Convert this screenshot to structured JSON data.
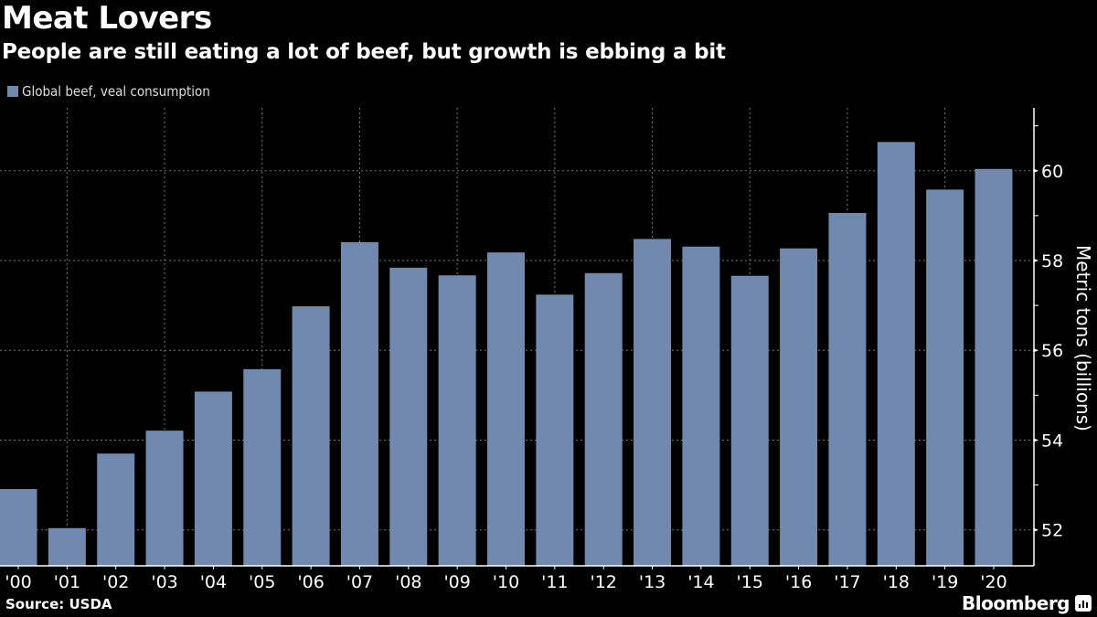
{
  "header": {
    "title": "Meat Lovers",
    "subtitle": "People are still eating a lot of beef, but growth is ebbing a bit"
  },
  "footer": {
    "source": "Source: USDA",
    "brand": "Bloomberg",
    "brand_icon": "bloomberg-chart-icon"
  },
  "colors": {
    "background": "#000000",
    "bar": "#7189ae",
    "text": "#ffffff",
    "grid": "#666666"
  },
  "chart_data": {
    "type": "bar",
    "title": "Meat Lovers",
    "subtitle": "People are still eating a lot of beef, but growth is ebbing a bit",
    "xlabel": "",
    "ylabel": "Metric tons (billions)",
    "legend": {
      "position": "top-left",
      "entries": [
        "Global beef, veal consumption"
      ]
    },
    "categories": [
      "'00",
      "'01",
      "'02",
      "'03",
      "'04",
      "'05",
      "'06",
      "'07",
      "'08",
      "'09",
      "'10",
      "'11",
      "'12",
      "'13",
      "'14",
      "'15",
      "'16",
      "'17",
      "'18",
      "'19",
      "'20"
    ],
    "series": [
      {
        "name": "Global beef, veal consumption",
        "values": [
          52.91,
          52.04,
          53.7,
          54.21,
          55.08,
          55.58,
          56.98,
          58.41,
          57.84,
          57.67,
          58.18,
          57.24,
          57.72,
          58.48,
          58.31,
          57.66,
          58.27,
          59.06,
          60.64,
          59.58,
          60.04
        ]
      }
    ],
    "ylim": [
      51.2,
      61.4
    ],
    "yticks": [
      52,
      54,
      56,
      58,
      60
    ],
    "yminor_ticks": [
      53,
      55,
      57,
      59,
      61
    ],
    "y_axis_side": "right",
    "grid": true
  }
}
